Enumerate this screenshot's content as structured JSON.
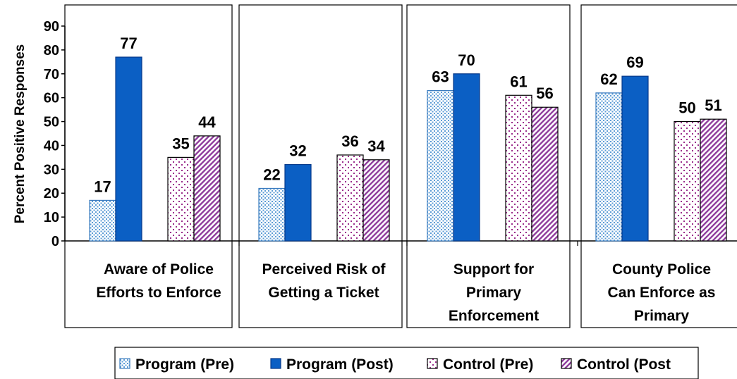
{
  "chart_data": {
    "type": "bar",
    "ylabel": "Percent Positive Responses",
    "ylim": [
      0,
      90
    ],
    "yticks": [
      0,
      10,
      20,
      30,
      40,
      50,
      60,
      70,
      80,
      90
    ],
    "grid": false,
    "legend_position": "bottom",
    "categories": [
      [
        "Aware of Police",
        "Efforts to Enforce"
      ],
      [
        "Perceived Risk of",
        "Getting a Ticket"
      ],
      [
        "Support for",
        "Primary",
        "Enforcement"
      ],
      [
        "County  Police",
        "Can Enforce as",
        "Primary"
      ]
    ],
    "series": [
      {
        "name": "Program (Pre)",
        "values": [
          17,
          22,
          63,
          62
        ],
        "color": "#5B9BD5",
        "pattern": "dots-blue"
      },
      {
        "name": "Program (Post)",
        "values": [
          77,
          32,
          70,
          69
        ],
        "color": "#0B5FC4",
        "pattern": "solid"
      },
      {
        "name": "Control (Pre)",
        "values": [
          35,
          36,
          61,
          50
        ],
        "color": "#9B2E8C",
        "pattern": "dots-purple"
      },
      {
        "name": "Control (Post",
        "values": [
          44,
          34,
          56,
          51
        ],
        "color": "#8E3A9C",
        "pattern": "diagonal-purple"
      }
    ],
    "data_labels": [
      [
        "17",
        "22",
        "63",
        "62"
      ],
      [
        "77",
        "32",
        "70",
        "69"
      ],
      [
        "35",
        "36",
        "61",
        "50"
      ],
      [
        "44",
        "34",
        "56",
        "51"
      ]
    ]
  }
}
